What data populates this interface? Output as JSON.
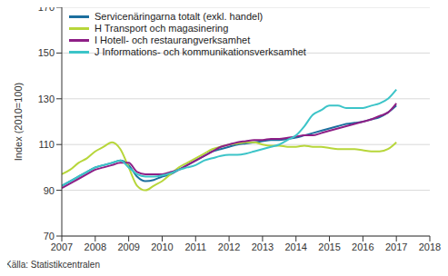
{
  "chart_data": {
    "type": "line",
    "y_label": "Index (2010=100)",
    "note": "Källa: Statistikcentralen",
    "x": [
      2007,
      2007.25,
      2007.5,
      2007.75,
      2008,
      2008.25,
      2008.5,
      2008.75,
      2009,
      2009.25,
      2009.5,
      2009.75,
      2010,
      2010.25,
      2010.5,
      2010.75,
      2011,
      2011.25,
      2011.5,
      2011.75,
      2012,
      2012.25,
      2012.5,
      2012.75,
      2013,
      2013.25,
      2013.5,
      2013.75,
      2014,
      2014.25,
      2014.5,
      2014.75,
      2015,
      2015.25,
      2015.5,
      2015.75,
      2016,
      2016.25,
      2016.5,
      2016.75,
      2017
    ],
    "series": [
      {
        "name": "Servicenäringarna totalt (exkl. handel)",
        "color": "#1c6f9e",
        "values": [
          92,
          94,
          96,
          98,
          100,
          101,
          102,
          103,
          101,
          96,
          94,
          94.5,
          96,
          97,
          99,
          101,
          103,
          105,
          107,
          108,
          109,
          110,
          110.5,
          111,
          111.5,
          112,
          112,
          112.5,
          113,
          114,
          115,
          116,
          117,
          118,
          119,
          119.5,
          120,
          121,
          122,
          124,
          127
        ]
      },
      {
        "name": "H Transport och magasinering",
        "color": "#b7d63a",
        "values": [
          97,
          99,
          102,
          104,
          107,
          109,
          111,
          108,
          100,
          92,
          90,
          92,
          94,
          97,
          100,
          102,
          104,
          106,
          108,
          109,
          110,
          110.5,
          111,
          111,
          110,
          109.5,
          109.5,
          109,
          109,
          109.5,
          109,
          109,
          108.5,
          108,
          108,
          108,
          107.5,
          107,
          107,
          108,
          111
        ]
      },
      {
        "name": "I Hotell- och restaurangverksamhet",
        "color": "#8e1f86",
        "values": [
          91,
          93,
          95,
          97,
          99,
          100,
          101,
          102,
          102,
          98,
          97,
          97,
          97,
          98,
          99,
          101,
          103,
          105,
          107,
          109,
          110,
          111,
          111.5,
          112,
          112,
          112.5,
          112.5,
          113,
          113.5,
          114,
          114,
          115,
          116,
          117,
          118,
          119,
          120,
          121,
          122.5,
          124,
          128
        ]
      },
      {
        "name": "J Informations- och kommunikationsverksamhet",
        "color": "#3cc4c8",
        "values": [
          92,
          94,
          96,
          98,
          100,
          101,
          102,
          103,
          100,
          97,
          96,
          96,
          96.5,
          97.5,
          99,
          100,
          101,
          103,
          104,
          105,
          105.5,
          105.5,
          106,
          107,
          108,
          109,
          110,
          112,
          114,
          118,
          123,
          125,
          127,
          127,
          126,
          126,
          126,
          127,
          128,
          130,
          134
        ]
      }
    ],
    "xlim": [
      2007,
      2018
    ],
    "xticks": [
      2007,
      2008,
      2009,
      2010,
      2011,
      2012,
      2013,
      2014,
      2015,
      2016,
      2017,
      2018
    ],
    "ylim": [
      70,
      170
    ],
    "yticks": [
      70,
      90,
      110,
      130,
      150,
      170
    ],
    "grid": true,
    "legend": "top-left"
  }
}
